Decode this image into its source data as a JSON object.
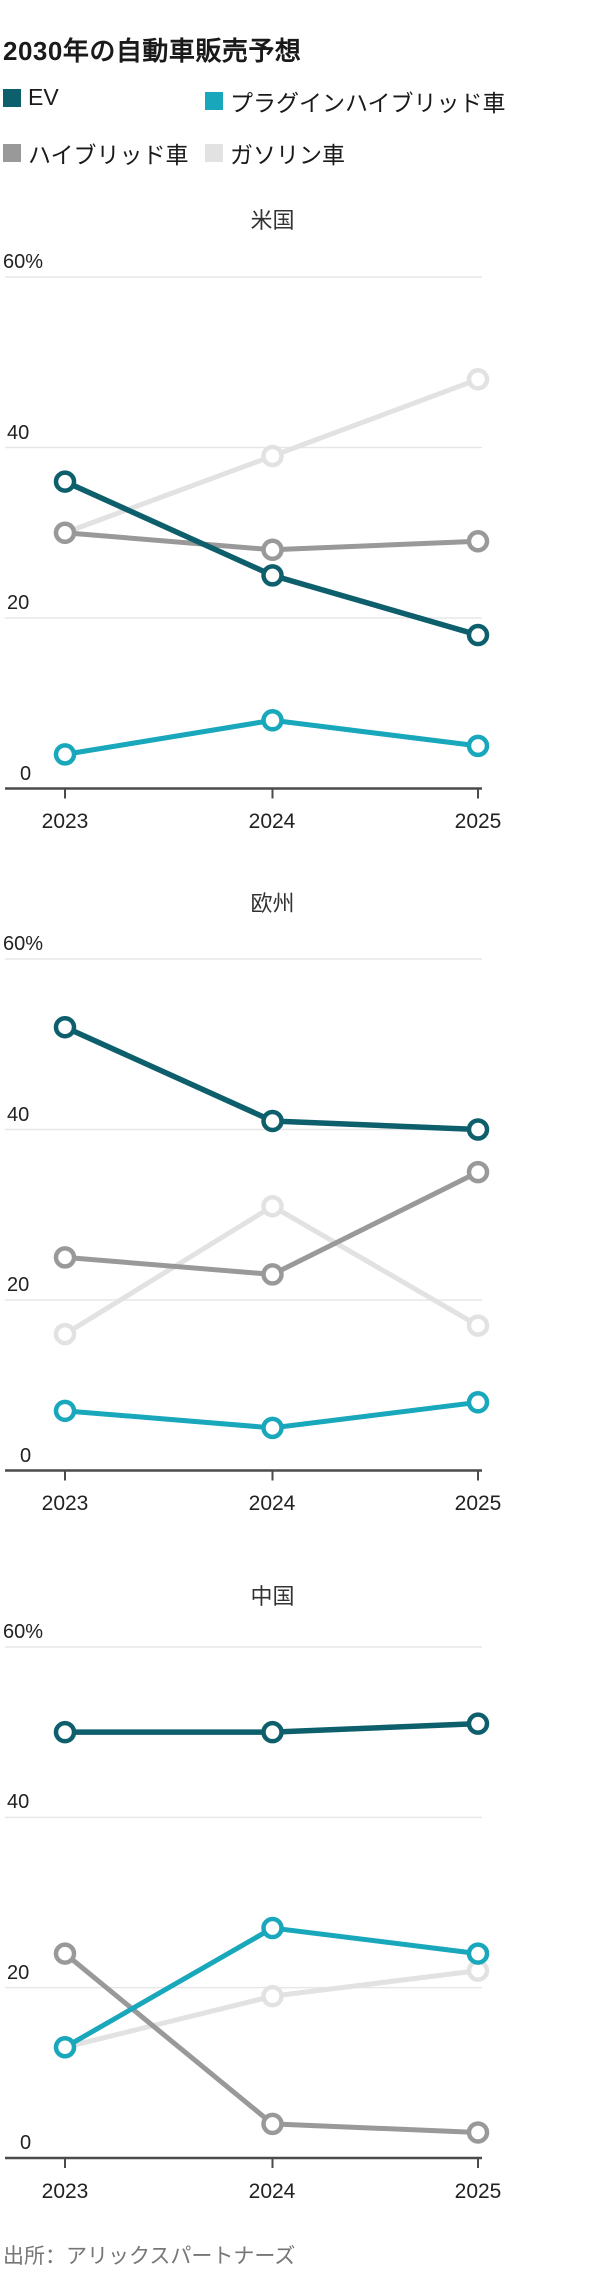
{
  "page": {
    "title": "2030年の自動車販売予想",
    "source": "出所：アリックスパートナーズ"
  },
  "legend": {
    "items": [
      {
        "label": "EV",
        "color": "#0e5f6c"
      },
      {
        "label": "プラグインハイブリッド車",
        "color": "#18a7bb"
      },
      {
        "label": "ハイブリッド車",
        "color": "#999999"
      },
      {
        "label": "ガソリン車",
        "color": "#e2e2e2"
      }
    ]
  },
  "chart_data": {
    "type": "line",
    "unit": "%",
    "x_years": [
      "2023",
      "2024",
      "2025"
    ],
    "y_ticks": [
      "60%",
      "40",
      "20",
      "0"
    ],
    "ylim": [
      0,
      60
    ],
    "grid": true,
    "marker": "open-circle",
    "panels": [
      {
        "title": "米国",
        "series": [
          {
            "name": "EV",
            "color": "#0e5f6c",
            "values": [
              36,
              25,
              18
            ]
          },
          {
            "name": "プラグインハイブリッド車",
            "color": "#18a7bb",
            "values": [
              4,
              8,
              5
            ]
          },
          {
            "name": "ハイブリッド車",
            "color": "#999999",
            "values": [
              30,
              28,
              29
            ]
          },
          {
            "name": "ガソリン車",
            "color": "#e2e2e2",
            "values": [
              30,
              39,
              48
            ]
          }
        ]
      },
      {
        "title": "欧州",
        "series": [
          {
            "name": "EV",
            "color": "#0e5f6c",
            "values": [
              52,
              41,
              40
            ]
          },
          {
            "name": "プラグインハイブリッド車",
            "color": "#18a7bb",
            "values": [
              7,
              5,
              8
            ]
          },
          {
            "name": "ハイブリッド車",
            "color": "#999999",
            "values": [
              25,
              23,
              35
            ]
          },
          {
            "name": "ガソリン車",
            "color": "#e2e2e2",
            "values": [
              16,
              31,
              17
            ]
          }
        ]
      },
      {
        "title": "中国",
        "series": [
          {
            "name": "EV",
            "color": "#0e5f6c",
            "values": [
              50,
              50,
              51
            ]
          },
          {
            "name": "プラグインハイブリッド車",
            "color": "#18a7bb",
            "values": [
              13,
              27,
              24
            ]
          },
          {
            "name": "ハイブリッド車",
            "color": "#999999",
            "values": [
              24,
              4,
              3
            ]
          },
          {
            "name": "ガソリン車",
            "color": "#e2e2e2",
            "values": [
              13,
              19,
              22
            ]
          }
        ]
      }
    ]
  }
}
